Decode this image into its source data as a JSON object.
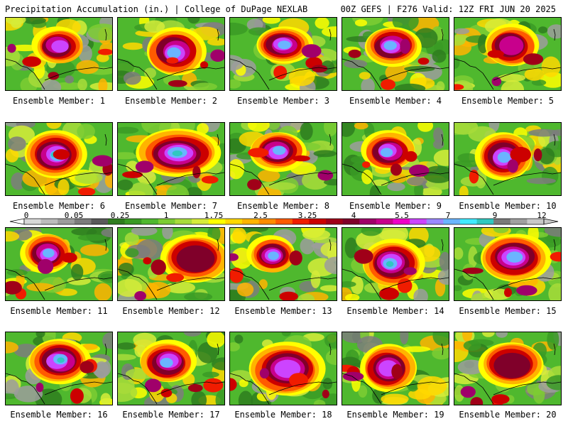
{
  "header": {
    "title": "Precipitation Accumulation (in.) | College of DuPage NEXLAB",
    "run": "00Z GEFS | F276 Valid: 12Z FRI JUN 20 2025"
  },
  "colors": {
    "scale": [
      "#d8d8d8",
      "#bcbcbc",
      "#9c9c9c",
      "#7c7c7c",
      "#5a5a5a",
      "#2e7d1e",
      "#3a9a24",
      "#4fb82e",
      "#7ccc32",
      "#a8dc3a",
      "#d6ec3a",
      "#ffff00",
      "#ffd800",
      "#ffb400",
      "#ff8c00",
      "#ff5a00",
      "#f01c00",
      "#cc0000",
      "#a00018",
      "#80002a",
      "#a0006a",
      "#c8008c",
      "#ee00c8",
      "#cc44ff",
      "#9a88ff",
      "#6ab4ff",
      "#40eaff",
      "#30c8c0",
      "#7a7a7a",
      "#a0a0a0",
      "#c8c8c8"
    ],
    "coastline": "#000000"
  },
  "legend": {
    "ticks": [
      "0",
      "0.05",
      "0.25",
      "1",
      "1.75",
      "2.5",
      "3.25",
      "4",
      "5.5",
      "7",
      "9",
      "12"
    ]
  },
  "members": [
    {
      "label": "Ensemble Member: 1"
    },
    {
      "label": "Ensemble Member: 2"
    },
    {
      "label": "Ensemble Member: 3"
    },
    {
      "label": "Ensemble Member: 4"
    },
    {
      "label": "Ensemble Member: 5"
    },
    {
      "label": "Ensemble Member: 6"
    },
    {
      "label": "Ensemble Member: 7"
    },
    {
      "label": "Ensemble Member: 8"
    },
    {
      "label": "Ensemble Member: 9"
    },
    {
      "label": "Ensemble Member: 10"
    },
    {
      "label": "Ensemble Member: 11"
    },
    {
      "label": "Ensemble Member: 12"
    },
    {
      "label": "Ensemble Member: 13"
    },
    {
      "label": "Ensemble Member: 14"
    },
    {
      "label": "Ensemble Member: 15"
    },
    {
      "label": "Ensemble Member: 16"
    },
    {
      "label": "Ensemble Member: 17"
    },
    {
      "label": "Ensemble Member: 18"
    },
    {
      "label": "Ensemble Member: 19"
    },
    {
      "label": "Ensemble Member: 20"
    }
  ]
}
